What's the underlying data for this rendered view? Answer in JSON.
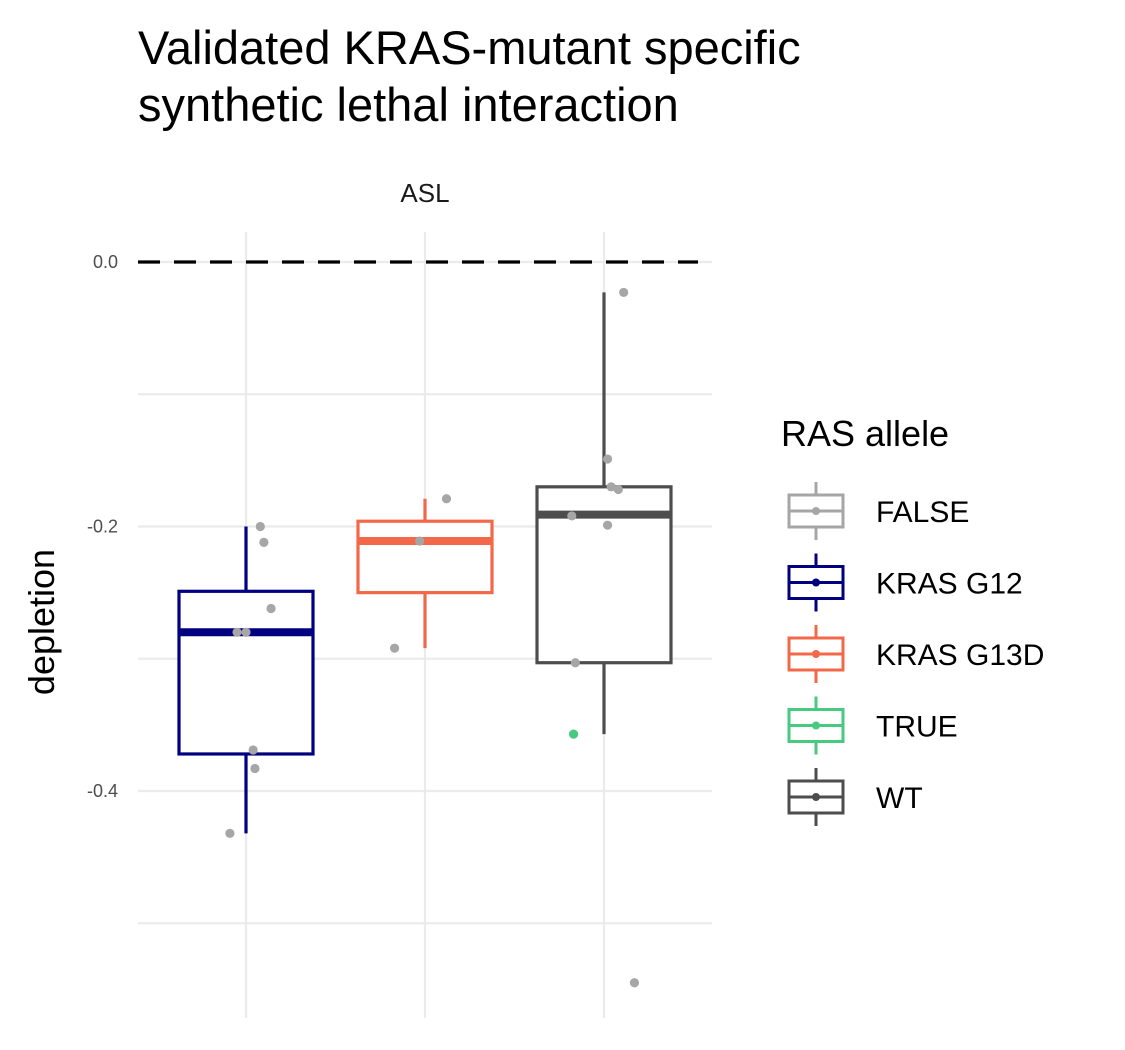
{
  "chart_data": {
    "type": "box",
    "title": [
      "Validated KRAS-mutant specific",
      "synthetic lethal interaction"
    ],
    "facet_label": "ASL",
    "xlabel": "",
    "ylabel": "depletion",
    "ylim": [
      -0.56,
      0.02
    ],
    "y_ticks": [
      {
        "value": 0.0,
        "label": "0.0"
      },
      {
        "value": -0.2,
        "label": "-0.2"
      },
      {
        "value": -0.4,
        "label": "-0.4"
      }
    ],
    "y_minor_gridlines": [
      -0.1,
      -0.3,
      -0.5
    ],
    "reference_line": {
      "value": 0.0,
      "style": "dashed",
      "color": "#000000"
    },
    "categories": [
      "KRAS G12",
      "KRAS G13D",
      "WT"
    ],
    "show_x_tick_labels": false,
    "grid": true,
    "boxes": [
      {
        "group": "KRAS G12",
        "color": "#000080",
        "lower_whisker": -0.432,
        "q1": -0.372,
        "median": -0.28,
        "q3": -0.249,
        "upper_whisker": -0.2
      },
      {
        "group": "KRAS G13D",
        "color": "#f4684a",
        "lower_whisker": -0.292,
        "q1": -0.25,
        "median": -0.211,
        "q3": -0.196,
        "upper_whisker": -0.179
      },
      {
        "group": "WT",
        "color": "#4d4d4d",
        "lower_whisker": -0.357,
        "q1": -0.303,
        "median": -0.191,
        "q3": -0.17,
        "upper_whisker": -0.023
      }
    ],
    "points": [
      {
        "x": 0.91,
        "y": -0.432,
        "group": "FALSE"
      },
      {
        "x": 0.95,
        "y": -0.28,
        "group": "FALSE"
      },
      {
        "x": 1.0,
        "y": -0.28,
        "group": "FALSE"
      },
      {
        "x": 1.04,
        "y": -0.369,
        "group": "FALSE"
      },
      {
        "x": 1.05,
        "y": -0.383,
        "group": "FALSE"
      },
      {
        "x": 1.08,
        "y": -0.2,
        "group": "FALSE"
      },
      {
        "x": 1.1,
        "y": -0.212,
        "group": "FALSE"
      },
      {
        "x": 1.14,
        "y": -0.262,
        "group": "FALSE"
      },
      {
        "x": 1.83,
        "y": -0.292,
        "group": "FALSE"
      },
      {
        "x": 1.97,
        "y": -0.211,
        "group": "FALSE"
      },
      {
        "x": 2.12,
        "y": -0.179,
        "group": "FALSE"
      },
      {
        "x": 2.82,
        "y": -0.192,
        "group": "FALSE"
      },
      {
        "x": 2.84,
        "y": -0.303,
        "group": "FALSE"
      },
      {
        "x": 2.83,
        "y": -0.357,
        "group": "TRUE"
      },
      {
        "x": 3.02,
        "y": -0.149,
        "group": "FALSE"
      },
      {
        "x": 3.02,
        "y": -0.199,
        "group": "FALSE"
      },
      {
        "x": 3.04,
        "y": -0.17,
        "group": "FALSE"
      },
      {
        "x": 3.08,
        "y": -0.172,
        "group": "FALSE"
      },
      {
        "x": 3.11,
        "y": -0.023,
        "group": "FALSE"
      },
      {
        "x": 3.17,
        "y": -0.545,
        "group": "FALSE"
      }
    ],
    "legend": {
      "title": "RAS allele",
      "position": "right",
      "entries": [
        {
          "label": "FALSE",
          "color": "#a6a6a6"
        },
        {
          "label": "KRAS G12",
          "color": "#000080"
        },
        {
          "label": "KRAS G13D",
          "color": "#f4684a"
        },
        {
          "label": "TRUE",
          "color": "#47c97f"
        },
        {
          "label": "WT",
          "color": "#4d4d4d"
        }
      ]
    },
    "colors": {
      "background": "#ffffff",
      "gridline": "#ebebeb",
      "point_false": "#a6a6a6",
      "point_true": "#47c97f"
    }
  }
}
